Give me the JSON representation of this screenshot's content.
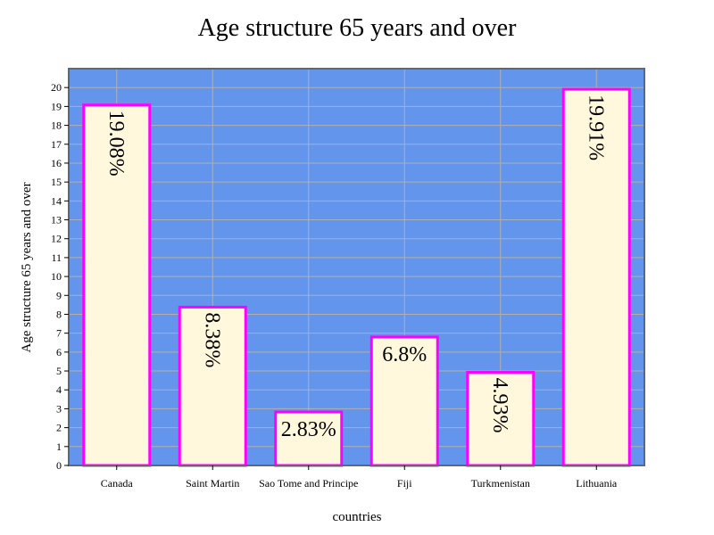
{
  "chart_data": {
    "type": "bar",
    "title": "Age structure 65 years and over",
    "xlabel": "countries",
    "ylabel": "Age structure 65 years and over",
    "categories": [
      "Canada",
      "Saint Martin",
      "Sao Tome and Principe",
      "Fiji",
      "Turkmenistan",
      "Lithuania"
    ],
    "values": [
      19.08,
      8.38,
      2.83,
      6.8,
      4.93,
      19.91
    ],
    "value_labels": [
      "19.08%",
      "8.38%",
      "2.83%",
      "6.8%",
      "4.93%",
      "19.91%"
    ],
    "label_rotated": [
      true,
      true,
      false,
      false,
      true,
      true
    ],
    "ylim": [
      0,
      21
    ],
    "yticks": [
      0,
      1,
      2,
      3,
      4,
      5,
      6,
      7,
      8,
      9,
      10,
      11,
      12,
      13,
      14,
      15,
      16,
      17,
      18,
      19,
      20
    ],
    "grid": true,
    "colors": {
      "plot_background": "#6495ed",
      "bar_fill": "#fff8dc",
      "bar_stroke": "#ff00ff",
      "grid": "#b0b0b0",
      "frame": "#666666"
    }
  }
}
